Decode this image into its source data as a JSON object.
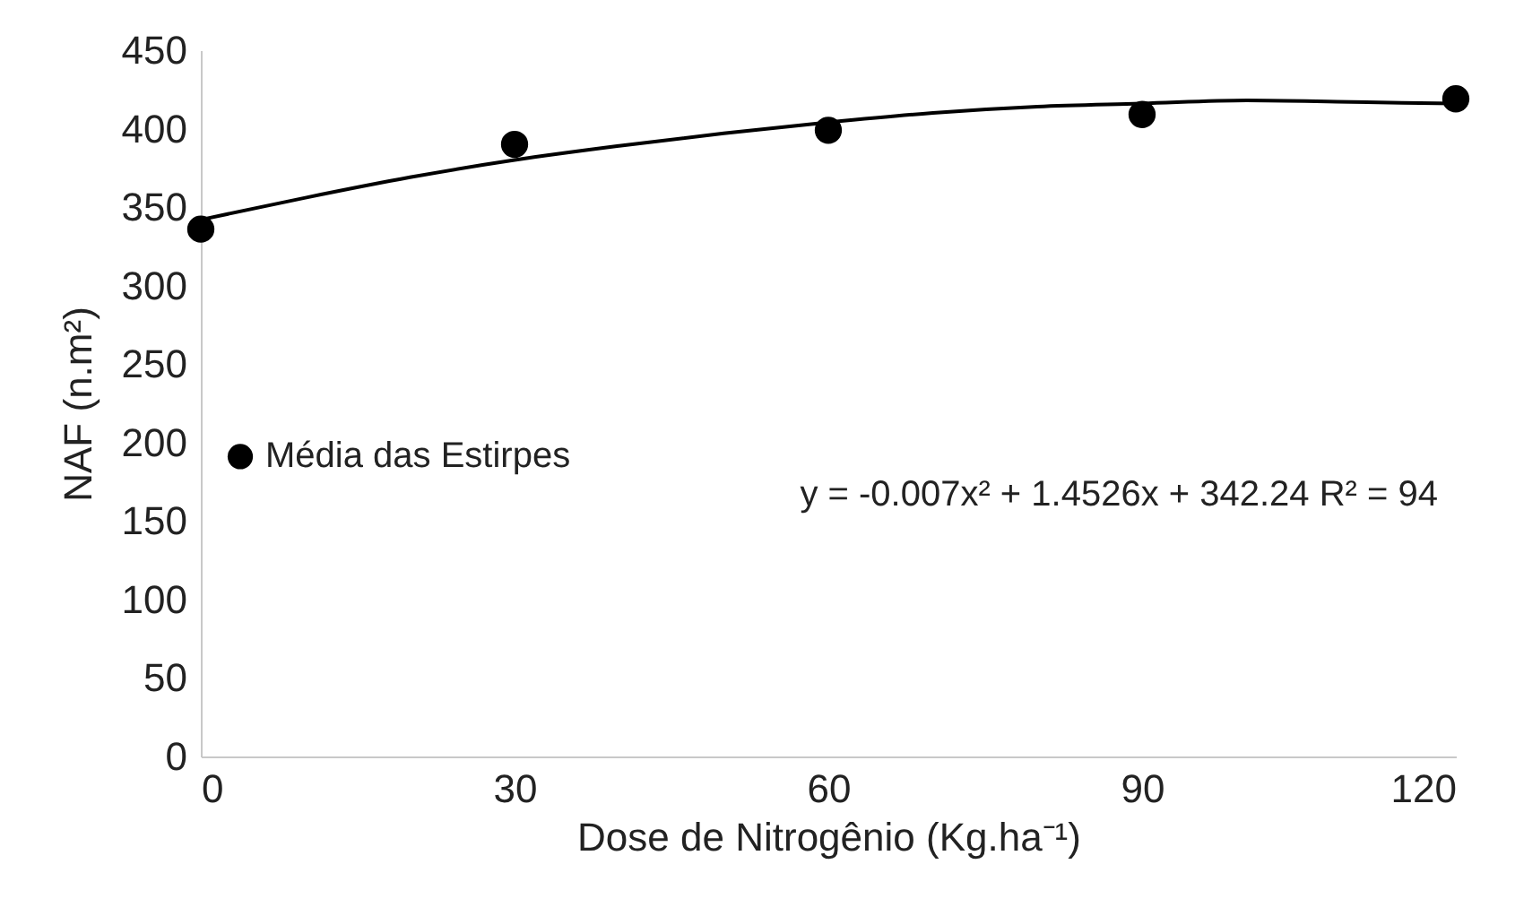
{
  "chart_data": {
    "type": "scatter",
    "xlabel": "Dose de Nitrogênio (Kg.ha⁻¹)",
    "ylabel": "NAF (n.m²)",
    "x": [
      0,
      30,
      60,
      90,
      120
    ],
    "series": [
      {
        "name": "Média das Estirpes",
        "marker": "circle",
        "color": "#000000",
        "values": [
          336,
          390,
          399,
          409,
          419
        ]
      },
      {
        "type": "line",
        "marker": "none",
        "color": "#000000",
        "x": [
          0,
          10,
          20,
          30,
          40,
          50,
          60,
          70,
          80,
          90,
          100,
          110,
          120
        ],
        "values": [
          342,
          356,
          369,
          380,
          389,
          397,
          404,
          410,
          414,
          416,
          418,
          417,
          416
        ]
      }
    ],
    "xlim": [
      0,
      120
    ],
    "xticks": [
      0,
      30,
      60,
      90,
      120
    ],
    "ylim": [
      0,
      450
    ],
    "yticks": [
      0,
      50,
      100,
      150,
      200,
      250,
      300,
      350,
      400,
      450
    ],
    "annotations": [
      "y = -0.007x² + 1.4526x + 342.24 R² = 94"
    ],
    "legend": "left",
    "grid": false,
    "line_style": "solid"
  }
}
